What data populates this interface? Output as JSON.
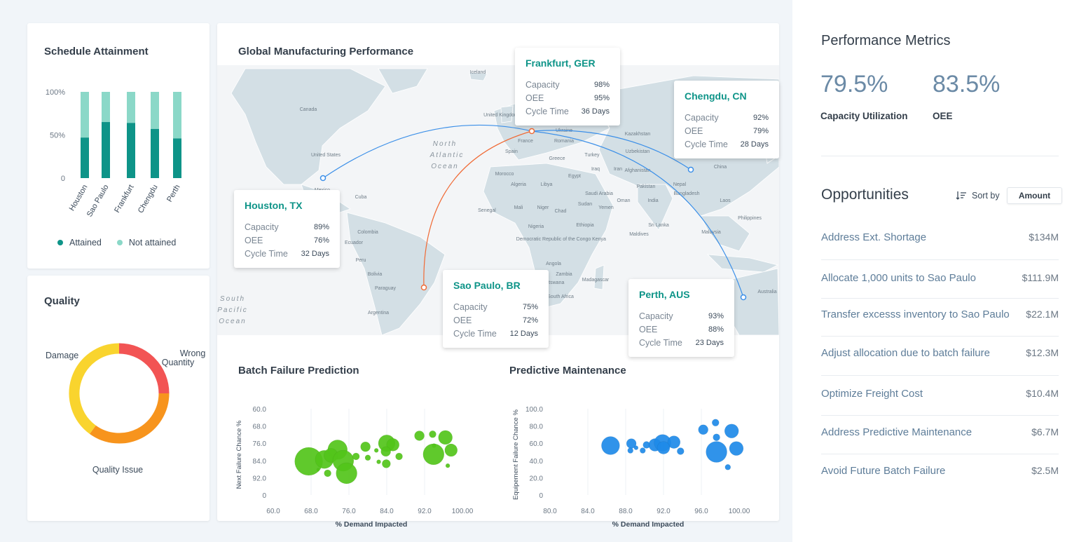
{
  "schedule": {
    "title": "Schedule Attainment",
    "y_ticks": [
      "100%",
      "50%",
      "0"
    ],
    "legend": {
      "attained": "Attained",
      "not_attained": "Not attained"
    },
    "colors": {
      "attained": "#0e9488",
      "not_attained": "#8bd8c8"
    },
    "chart_data": {
      "type": "bar",
      "stacked": true,
      "categories": [
        "Houston",
        "Sao Paulo",
        "Frankfurt",
        "Chengdu",
        "Perth"
      ],
      "series": [
        {
          "name": "Attained",
          "values": [
            47,
            65,
            64,
            57,
            46
          ]
        },
        {
          "name": "Not attained",
          "values": [
            53,
            35,
            36,
            43,
            54
          ]
        }
      ],
      "ylim": [
        0,
        100
      ]
    }
  },
  "quality": {
    "title": "Quality",
    "labels": {
      "damage": "Damage",
      "wrong_quantity_1": "Wrong",
      "wrong_quantity_2": "Quantity",
      "quality_issue": "Quality Issue"
    },
    "chart_data": {
      "type": "pie",
      "donut": true,
      "categories": [
        "Damage",
        "Wrong Quantity",
        "Quality Issue"
      ],
      "values": [
        25,
        35,
        40
      ],
      "colors": [
        "#f25454",
        "#f7941d",
        "#f9d42e"
      ]
    }
  },
  "global": {
    "title": "Global Manufacturing Performance",
    "ocean_labels": {
      "north_atlantic": [
        "North",
        "Atlantic",
        "Ocean"
      ],
      "south_pacific": [
        "South",
        "Pacific",
        "Ocean"
      ]
    },
    "map_labels": [
      "Iceland",
      "Canada",
      "United States",
      "Mexico",
      "Cuba",
      "Colombia",
      "Ecuador",
      "Peru",
      "Bolivia",
      "Paraguay",
      "Argentina",
      "Morocco",
      "Algeria",
      "Libya",
      "Mali",
      "Niger",
      "Chad",
      "Nigeria",
      "Sudan",
      "Ethiopia",
      "Kenya",
      "Angola",
      "Zambia",
      "Namibia",
      "Botswana",
      "South Africa",
      "Madagascar",
      "Senegal",
      "Egypt",
      "Saudi Arabia",
      "Yemen",
      "Oman",
      "Iraq",
      "Iran",
      "Afghanistan",
      "Pakistan",
      "India",
      "Nepal",
      "Bangladesh",
      "China",
      "Mongolia",
      "Kazakhstan",
      "Uzbekistan",
      "Turkey",
      "Greece",
      "Spain",
      "France",
      "Ukraine",
      "Romania",
      "Sri Lanka",
      "Maldives",
      "Laos",
      "Philippines",
      "Malaysia",
      "Australia",
      "Democratic Republic of the Congo",
      "United Kingdom"
    ],
    "tooltips": [
      {
        "city": "Frankfurt, GER",
        "capacity": "98%",
        "oee": "95%",
        "cycle_time": "36 Days"
      },
      {
        "city": "Chengdu, CN",
        "capacity": "92%",
        "oee": "79%",
        "cycle_time": "28 Days"
      },
      {
        "city": "Houston, TX",
        "capacity": "89%",
        "oee": "76%",
        "cycle_time": "32 Days"
      },
      {
        "city": "Sao Paulo, BR",
        "capacity": "75%",
        "oee": "72%",
        "cycle_time": "12 Days"
      },
      {
        "city": "Perth, AUS",
        "capacity": "93%",
        "oee": "88%",
        "cycle_time": "23 Days"
      }
    ],
    "row_labels": {
      "capacity": "Capacity",
      "oee": "OEE",
      "cycle_time": "Cycle Time"
    },
    "route_colors": {
      "primary": "#3b8fe8",
      "highlight": "#f06a35"
    }
  },
  "batch": {
    "title": "Batch Failure Prediction",
    "color": "#52c41a",
    "chart_data": {
      "type": "scatter",
      "xlabel": "% Demand Impacted",
      "ylabel": "Next Failure Chance %",
      "x_ticks": [
        "60.0",
        "68.0",
        "76.0",
        "84.0",
        "92.0",
        "100.00"
      ],
      "y_ticks": [
        "60.0",
        "68.0",
        "76.0",
        "84.0",
        "92.0",
        "0"
      ],
      "points": [
        {
          "x": 67.5,
          "y": 84.4,
          "r": 20
        },
        {
          "x": 70.8,
          "y": 83.5,
          "r": 13
        },
        {
          "x": 73.6,
          "y": 79.0,
          "r": 14
        },
        {
          "x": 72.2,
          "y": 81.6,
          "r": 10
        },
        {
          "x": 74.8,
          "y": 84.1,
          "r": 15
        },
        {
          "x": 75.5,
          "y": 89.9,
          "r": 15
        },
        {
          "x": 71.5,
          "y": 89.9,
          "r": 5
        },
        {
          "x": 69.5,
          "y": 88.2,
          "r": 2
        },
        {
          "x": 77.5,
          "y": 82.1,
          "r": 5
        },
        {
          "x": 79.5,
          "y": 77.6,
          "r": 7
        },
        {
          "x": 80.0,
          "y": 82.7,
          "r": 4
        },
        {
          "x": 81.8,
          "y": 79.3,
          "r": 3
        },
        {
          "x": 82.3,
          "y": 84.6,
          "r": 3
        },
        {
          "x": 84.0,
          "y": 76.0,
          "r": 12
        },
        {
          "x": 85.3,
          "y": 76.7,
          "r": 9
        },
        {
          "x": 83.8,
          "y": 79.8,
          "r": 7
        },
        {
          "x": 83.9,
          "y": 85.5,
          "r": 6
        },
        {
          "x": 86.6,
          "y": 82.1,
          "r": 5
        },
        {
          "x": 90.9,
          "y": 72.5,
          "r": 7
        },
        {
          "x": 93.7,
          "y": 71.8,
          "r": 5
        },
        {
          "x": 94.0,
          "y": 77.1,
          "r": 3
        },
        {
          "x": 96.4,
          "y": 73.3,
          "r": 10
        },
        {
          "x": 93.9,
          "y": 81.1,
          "r": 15
        },
        {
          "x": 97.6,
          "y": 79.2,
          "r": 9
        },
        {
          "x": 96.9,
          "y": 86.4,
          "r": 3
        }
      ]
    }
  },
  "maintenance": {
    "title": "Predictive Maintenance",
    "color": "#1e8ae8",
    "chart_data": {
      "type": "scatter",
      "xlabel": "% Demand Impacted",
      "ylabel": "Equipement Failure Chance %",
      "x_ticks": [
        "80.0",
        "84.0",
        "88.0",
        "92.0",
        "96.0",
        "100.00"
      ],
      "y_ticks": [
        "100.0",
        "80.0",
        "60.0",
        "40.0",
        "20.0",
        "0"
      ],
      "points": [
        {
          "x": 86.4,
          "y": 57.3,
          "r": 13
        },
        {
          "x": 88.6,
          "y": 59.7,
          "r": 7
        },
        {
          "x": 89.1,
          "y": 54.8,
          "r": 3
        },
        {
          "x": 90.2,
          "y": 58.1,
          "r": 5
        },
        {
          "x": 88.5,
          "y": 51.6,
          "r": 4
        },
        {
          "x": 89.8,
          "y": 51.6,
          "r": 4
        },
        {
          "x": 91.1,
          "y": 58.1,
          "r": 9
        },
        {
          "x": 91.9,
          "y": 60.5,
          "r": 12
        },
        {
          "x": 93.1,
          "y": 61.3,
          "r": 9
        },
        {
          "x": 92.0,
          "y": 54.8,
          "r": 9
        },
        {
          "x": 93.8,
          "y": 50.8,
          "r": 5
        },
        {
          "x": 96.2,
          "y": 75.8,
          "r": 7
        },
        {
          "x": 97.5,
          "y": 83.9,
          "r": 5
        },
        {
          "x": 99.2,
          "y": 74.2,
          "r": 10
        },
        {
          "x": 97.6,
          "y": 66.9,
          "r": 5
        },
        {
          "x": 97.6,
          "y": 50.0,
          "r": 15
        },
        {
          "x": 99.7,
          "y": 54.0,
          "r": 10
        },
        {
          "x": 98.8,
          "y": 32.3,
          "r": 4
        }
      ]
    }
  },
  "metrics": {
    "title": "Performance Metrics",
    "capacity_value": "79.5%",
    "capacity_label": "Capacity Utilization",
    "oee_value": "83.5%",
    "oee_label": "OEE"
  },
  "opportunities": {
    "title": "Opportunities",
    "sort_label": "Sort by",
    "sort_value": "Amount",
    "items": [
      {
        "label": "Address Ext. Shortage",
        "amount": "$134M"
      },
      {
        "label": "Allocate 1,000 units to Sao Paulo",
        "amount": "$111.9M"
      },
      {
        "label": "Transfer excesss inventory to Sao Paulo",
        "amount": "$22.1M"
      },
      {
        "label": "Adjust allocation due to batch failure",
        "amount": "$12.3M"
      },
      {
        "label": "Optimize Freight Cost",
        "amount": "$10.4M"
      },
      {
        "label": "Address Predictive Maintenance",
        "amount": "$6.7M"
      },
      {
        "label": "Avoid Future Batch Failure",
        "amount": "$2.5M"
      }
    ]
  }
}
